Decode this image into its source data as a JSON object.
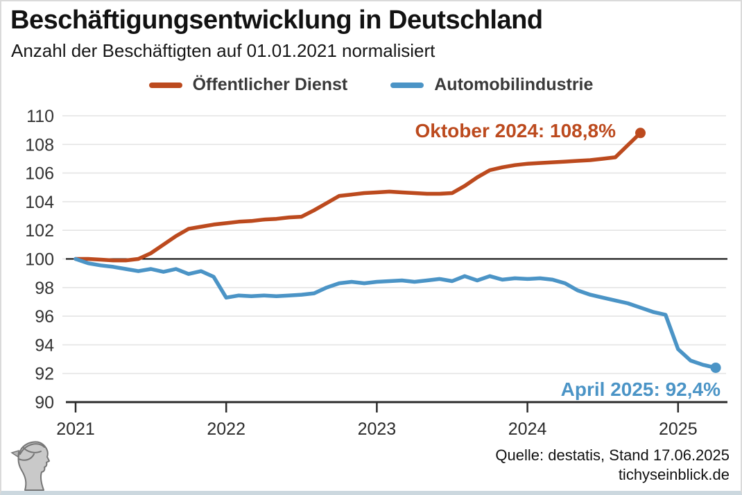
{
  "header": {
    "title": "Beschäftigungsentwicklung in Deutschland",
    "subtitle": "Anzahl der Beschäftigten auf 01.01.2021 normalisiert"
  },
  "legend": [
    {
      "label": "Öffentlicher Dienst",
      "color": "#bc4a1e"
    },
    {
      "label": "Automobilindustrie",
      "color": "#4b94c6"
    }
  ],
  "annotations": {
    "red": "Oktober 2024: 108,8%",
    "blue": "April 2025: 92,4%"
  },
  "footer": {
    "source": "Quelle: destatis, Stand 17.06.2025",
    "site": "tichyseinblick.de"
  },
  "colors": {
    "red_series": "#bc4a1e",
    "blue_series": "#4b94c6",
    "grid": "#e4e4e4",
    "baseline": "#000000",
    "axis": "#2b2b2b"
  },
  "chart_data": {
    "type": "line",
    "title": "Beschäftigungsentwicklung in Deutschland",
    "subtitle": "Anzahl der Beschäftigten auf 01.01.2021 normalisiert",
    "grid": true,
    "legend_position": "top",
    "ylim": [
      90,
      110
    ],
    "yticks": [
      90,
      92,
      94,
      96,
      98,
      100,
      102,
      104,
      106,
      108,
      110
    ],
    "xticks": [
      2021,
      2022,
      2023,
      2024,
      2025
    ],
    "baseline_value": 100,
    "x_unit": "months since 2021-01",
    "series": [
      {
        "name": "Öffentlicher Dienst",
        "color": "#bc4a1e",
        "start": "2021-01",
        "end": "2024-10",
        "end_value": 108.8,
        "end_label": "Oktober 2024: 108,8%",
        "monthly_values": [
          100.0,
          100.0,
          99.95,
          99.9,
          99.9,
          100.0,
          100.4,
          101.0,
          101.6,
          102.1,
          102.25,
          102.4,
          102.5,
          102.6,
          102.65,
          102.75,
          102.8,
          102.9,
          102.95,
          103.4,
          103.9,
          104.4,
          104.5,
          104.6,
          104.65,
          104.7,
          104.65,
          104.6,
          104.55,
          104.55,
          104.6,
          105.1,
          105.7,
          106.2,
          106.4,
          106.55,
          106.65,
          106.7,
          106.75,
          106.8,
          106.85,
          106.9,
          107.0,
          107.1,
          107.95,
          108.8
        ]
      },
      {
        "name": "Automobilindustrie",
        "color": "#4b94c6",
        "start": "2021-01",
        "end": "2025-04",
        "end_value": 92.4,
        "end_label": "April 2025: 92,4%",
        "monthly_values": [
          100.0,
          99.7,
          99.55,
          99.45,
          99.3,
          99.15,
          99.3,
          99.1,
          99.3,
          98.95,
          99.15,
          98.75,
          97.3,
          97.45,
          97.4,
          97.45,
          97.4,
          97.45,
          97.5,
          97.6,
          98.0,
          98.3,
          98.4,
          98.3,
          98.4,
          98.45,
          98.5,
          98.4,
          98.5,
          98.6,
          98.45,
          98.8,
          98.5,
          98.8,
          98.55,
          98.65,
          98.6,
          98.65,
          98.55,
          98.3,
          97.8,
          97.5,
          97.3,
          97.1,
          96.9,
          96.6,
          96.3,
          96.1,
          93.7,
          92.9,
          92.6,
          92.4
        ]
      }
    ]
  }
}
